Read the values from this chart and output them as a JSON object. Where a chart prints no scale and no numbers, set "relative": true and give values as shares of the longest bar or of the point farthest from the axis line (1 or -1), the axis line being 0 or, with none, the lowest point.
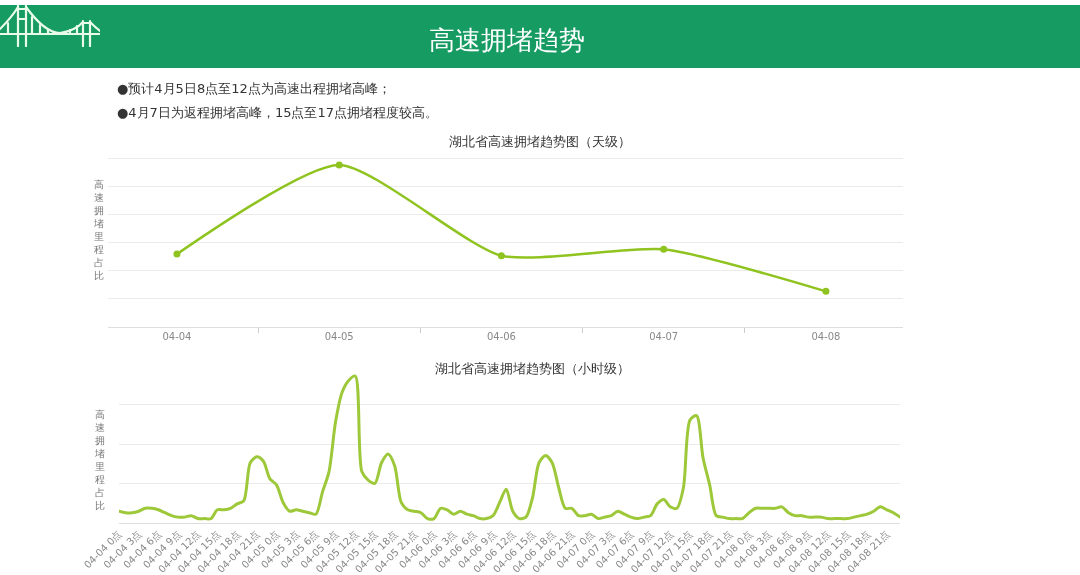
{
  "chart_data": [
    {
      "type": "other",
      "title": "高速拥堵趋势",
      "annotations": [
        "●预计4月5日8点至12点为高速出程拥堵高峰；",
        "●4月7日为返程拥堵高峰，15点至17点拥堵程度较高。"
      ]
    },
    {
      "type": "line",
      "title": "湖北省高速拥堵趋势图（天级）",
      "ylabel": "高速拥堵里程占比",
      "categories": [
        "04-04",
        "04-05",
        "04-06",
        "04-07",
        "04-08"
      ],
      "relative": true,
      "grid": "y",
      "marker": "circle",
      "series": [
        {
          "color": "#8fc31f",
          "values": [
            0.45,
            1,
            0.44,
            0.48,
            0.22
          ]
        }
      ]
    },
    {
      "type": "line",
      "title": "湖北省高速拥堵趋势图（小时级）",
      "ylabel": "高速拥堵里程占比",
      "relative": true,
      "grid": "y",
      "categories": [
        "04-04 0点",
        null,
        null,
        "04-04 3点",
        null,
        null,
        "04-04 6点",
        null,
        null,
        "04-04 9点",
        null,
        null,
        "04-04 12点",
        null,
        null,
        "04-04 15点",
        null,
        null,
        "04-04 18点",
        null,
        null,
        "04-04 21点",
        null,
        null,
        "04-05 0点",
        null,
        null,
        "04-05 3点",
        null,
        null,
        "04-05 6点",
        null,
        null,
        "04-05 9点",
        null,
        null,
        "04-05 12点",
        null,
        null,
        "04-05 15点",
        null,
        null,
        "04-05 18点",
        null,
        null,
        "04-05 21点",
        null,
        null,
        "04-06 0点",
        null,
        null,
        "04-06 3点",
        null,
        null,
        "04-06 6点",
        null,
        null,
        "04-06 9点",
        null,
        null,
        "04-06 12点",
        null,
        null,
        "04-06 15点",
        null,
        null,
        "04-06 18点",
        null,
        null,
        "04-06 21点",
        null,
        null,
        "04-07 0点",
        null,
        null,
        "04-07 3点",
        null,
        null,
        "04-07 6点",
        null,
        null,
        "04-07 9点",
        null,
        null,
        "04-07 12点",
        null,
        null,
        "04-07 15点",
        null,
        null,
        "04-07 18点",
        null,
        null,
        "04-07 21点",
        null,
        null,
        "04-08 0点",
        null,
        null,
        "04-08 3点",
        null,
        null,
        "04-08 6点",
        null,
        null,
        "04-08 9点",
        null,
        null,
        "04-08 12点",
        null,
        null,
        "04-08 15点",
        null,
        null,
        "04-08 18点",
        null,
        null,
        "04-08 21点",
        null,
        null
      ],
      "series": [
        {
          "color": "#9dc83a",
          "values": [
            0.08,
            0.07,
            0.07,
            0.08,
            0.1,
            0.1,
            0.09,
            0.07,
            0.05,
            0.04,
            0.04,
            0.05,
            0.03,
            0.03,
            0.03,
            0.09,
            0.09,
            0.1,
            0.13,
            0.15,
            0.41,
            0.45,
            0.42,
            0.3,
            0.26,
            0.14,
            0.08,
            0.09,
            0.08,
            0.07,
            0.06,
            0.21,
            0.35,
            0.69,
            0.89,
            0.97,
            1,
            0.35,
            0.29,
            0.27,
            0.41,
            0.47,
            0.39,
            0.14,
            0.09,
            0.08,
            0.07,
            0.03,
            0.03,
            0.1,
            0.09,
            0.06,
            0.08,
            0.06,
            0.05,
            0.03,
            0.03,
            0.05,
            0.14,
            0.23,
            0.08,
            0.03,
            0.04,
            0.17,
            0.41,
            0.46,
            0.41,
            0.24,
            0.1,
            0.1,
            0.05,
            0.05,
            0.06,
            0.03,
            0.04,
            0.05,
            0.08,
            0.06,
            0.04,
            0.03,
            0.04,
            0.05,
            0.13,
            0.16,
            0.11,
            0.1,
            0.24,
            0.7,
            0.73,
            0.44,
            0.26,
            0.05,
            0.04,
            0.03,
            0.03,
            0.03,
            0.07,
            0.1,
            0.1,
            0.1,
            0.1,
            0.11,
            0.07,
            0.05,
            0.05,
            0.04,
            0.04,
            0.04,
            0.03,
            0.03,
            0.03,
            0.03,
            0.04,
            0.05,
            0.06,
            0.08,
            0.11,
            0.09,
            0.07,
            0.04
          ]
        }
      ]
    }
  ]
}
